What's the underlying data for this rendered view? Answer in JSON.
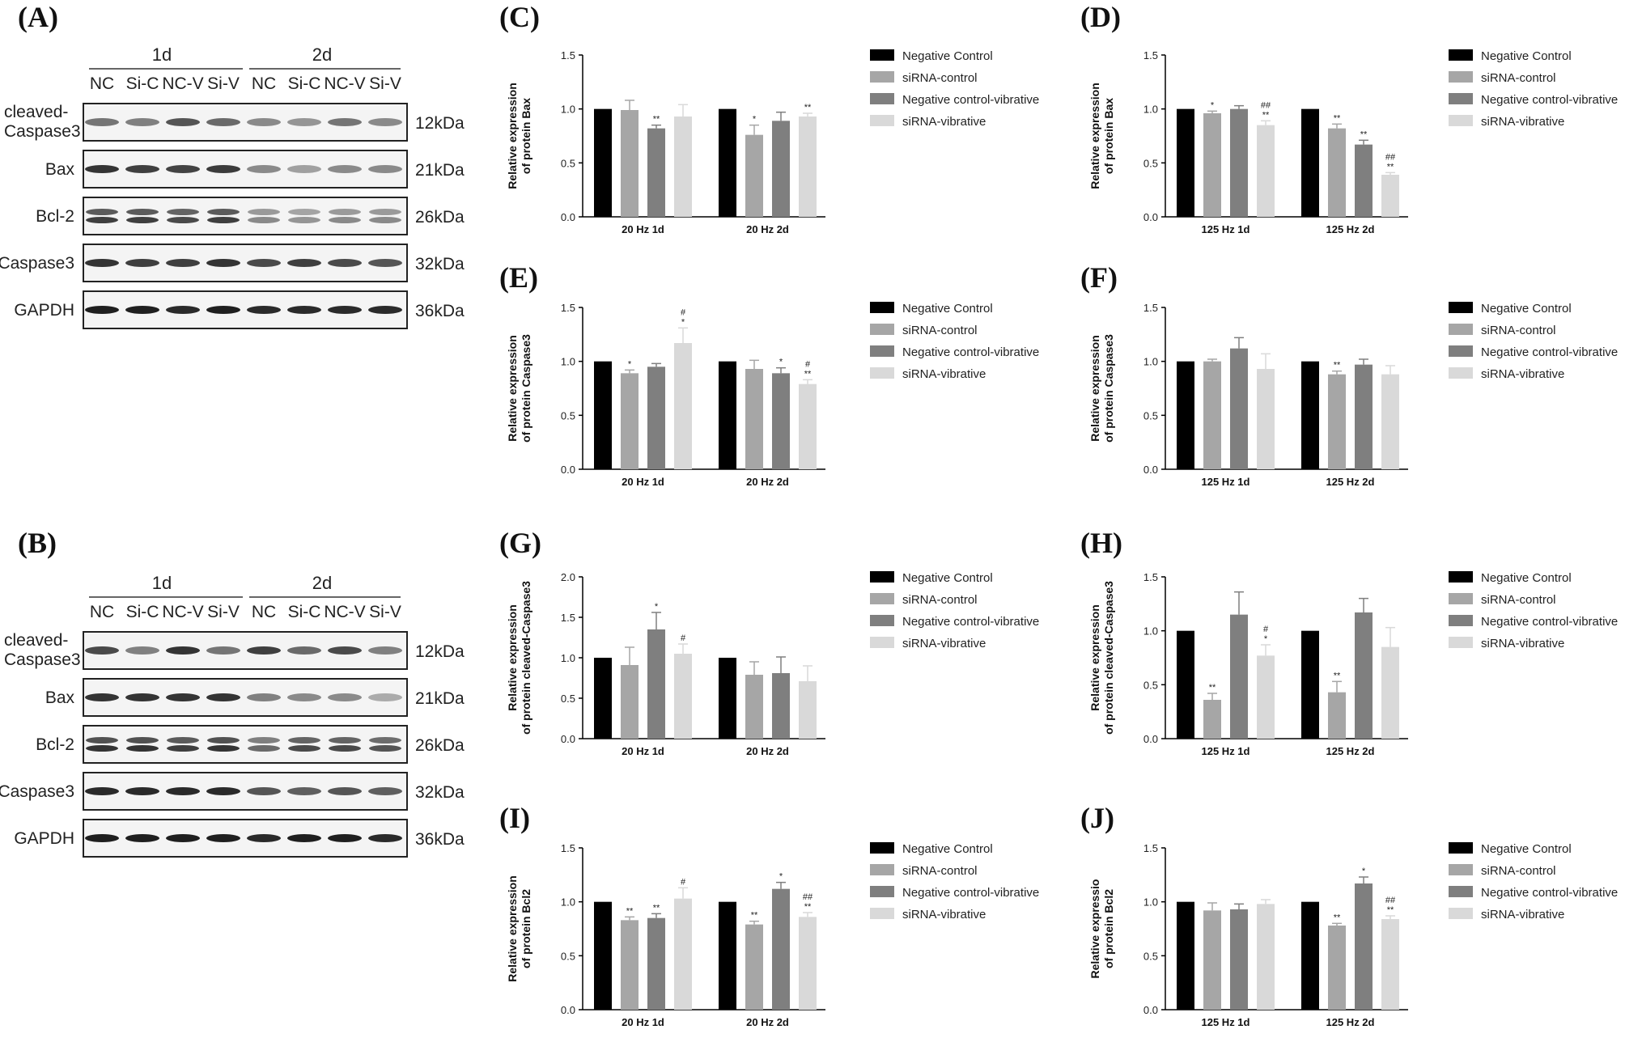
{
  "panel_letters": {
    "A": "(A)",
    "B": "(B)",
    "C": "(C)",
    "D": "(D)",
    "E": "(E)",
    "F": "(F)",
    "G": "(G)",
    "H": "(H)",
    "I": "(I)",
    "J": "(J)"
  },
  "blots": [
    {
      "day_headers": [
        "1d",
        "2d"
      ],
      "lanes": [
        "NC",
        "Si-C",
        "NC-V",
        "Si-V",
        "NC",
        "Si-C",
        "NC-V",
        "Si-V"
      ],
      "rows": [
        {
          "label": "cleaved-\nCaspase3",
          "kda": "12kDa",
          "intensity": [
            0.55,
            0.5,
            0.7,
            0.6,
            0.45,
            0.4,
            0.55,
            0.45
          ],
          "double": false
        },
        {
          "label": "Bax",
          "kda": "21kDa",
          "intensity": [
            0.85,
            0.8,
            0.78,
            0.82,
            0.45,
            0.35,
            0.45,
            0.45
          ],
          "double": false
        },
        {
          "label": "Bcl-2",
          "kda": "26kDa",
          "intensity": [
            0.8,
            0.8,
            0.75,
            0.8,
            0.45,
            0.4,
            0.45,
            0.45
          ],
          "double": true
        },
        {
          "label": "Caspase3",
          "kda": "32kDa",
          "intensity": [
            0.85,
            0.8,
            0.8,
            0.85,
            0.75,
            0.8,
            0.75,
            0.7
          ],
          "double": false
        },
        {
          "label": "GAPDH",
          "kda": "36kDa",
          "intensity": [
            0.95,
            0.95,
            0.9,
            0.95,
            0.9,
            0.9,
            0.9,
            0.9
          ],
          "double": false
        }
      ]
    },
    {
      "day_headers": [
        "1d",
        "2d"
      ],
      "lanes": [
        "NC",
        "Si-C",
        "NC-V",
        "Si-V",
        "NC",
        "Si-C",
        "NC-V",
        "Si-V"
      ],
      "rows": [
        {
          "label": "cleaved-\nCaspase3",
          "kda": "12kDa",
          "intensity": [
            0.75,
            0.5,
            0.85,
            0.55,
            0.8,
            0.6,
            0.75,
            0.5
          ],
          "double": false
        },
        {
          "label": "Bax",
          "kda": "21kDa",
          "intensity": [
            0.85,
            0.85,
            0.85,
            0.85,
            0.5,
            0.45,
            0.45,
            0.3
          ],
          "double": false
        },
        {
          "label": "Bcl-2",
          "kda": "26kDa",
          "intensity": [
            0.85,
            0.85,
            0.8,
            0.85,
            0.6,
            0.75,
            0.75,
            0.7
          ],
          "double": true
        },
        {
          "label": "Caspase3",
          "kda": "32kDa",
          "intensity": [
            0.9,
            0.9,
            0.9,
            0.9,
            0.7,
            0.65,
            0.7,
            0.65
          ],
          "double": false
        },
        {
          "label": "GAPDH",
          "kda": "36kDa",
          "intensity": [
            0.95,
            0.95,
            0.95,
            0.95,
            0.9,
            0.95,
            0.95,
            0.9
          ],
          "double": false
        }
      ]
    }
  ],
  "chart_data": [
    {
      "id": "C",
      "type": "bar",
      "ylabel": [
        "Relative expression",
        "of protein Bax"
      ],
      "ylim": [
        0,
        1.5
      ],
      "yticks": [
        "0.0",
        "0.5",
        "1.0",
        "1.5"
      ],
      "categories": [
        "20 Hz 1d",
        "20 Hz 2d"
      ],
      "series": [
        {
          "name": "Negative Control",
          "color": "#000000",
          "values": [
            1.0,
            1.0
          ],
          "errors": [
            0,
            0
          ]
        },
        {
          "name": "siRNA-control",
          "color": "#a6a6a6",
          "values": [
            0.99,
            0.76
          ],
          "errors": [
            0.09,
            0.09
          ]
        },
        {
          "name": "Negative control-vibrative",
          "color": "#7f7f7f",
          "values": [
            0.82,
            0.89
          ],
          "errors": [
            0.03,
            0.08
          ]
        },
        {
          "name": "siRNA-vibrative",
          "color": "#d9d9d9",
          "values": [
            0.93,
            0.93
          ],
          "errors": [
            0.11,
            0.03
          ]
        }
      ],
      "annotations": [
        [
          "",
          "",
          "**",
          ""
        ],
        [
          "",
          "*",
          "",
          "**"
        ]
      ]
    },
    {
      "id": "D",
      "type": "bar",
      "ylabel": [
        "Relative expression",
        "of protein Bax"
      ],
      "ylim": [
        0,
        1.5
      ],
      "yticks": [
        "0.0",
        "0.5",
        "1.0",
        "1.5"
      ],
      "categories": [
        "125 Hz 1d",
        "125 Hz 2d"
      ],
      "series": [
        {
          "name": "Negative Control",
          "color": "#000000",
          "values": [
            1.0,
            1.0
          ],
          "errors": [
            0,
            0
          ]
        },
        {
          "name": "siRNA-control",
          "color": "#a6a6a6",
          "values": [
            0.96,
            0.82
          ],
          "errors": [
            0.02,
            0.04
          ]
        },
        {
          "name": "Negative control-vibrative",
          "color": "#7f7f7f",
          "values": [
            1.0,
            0.67
          ],
          "errors": [
            0.03,
            0.04
          ]
        },
        {
          "name": "siRNA-vibrative",
          "color": "#d9d9d9",
          "values": [
            0.85,
            0.39
          ],
          "errors": [
            0.04,
            0.02
          ]
        }
      ],
      "annotations": [
        [
          "",
          "*",
          "",
          "##\n**"
        ],
        [
          "",
          "**",
          "**",
          "##\n**"
        ]
      ]
    },
    {
      "id": "E",
      "type": "bar",
      "ylabel": [
        "Relative expression",
        "of protein Caspase3"
      ],
      "ylim": [
        0,
        1.5
      ],
      "yticks": [
        "0.0",
        "0.5",
        "1.0",
        "1.5"
      ],
      "categories": [
        "20 Hz 1d",
        "20 Hz 2d"
      ],
      "series": [
        {
          "name": "Negative Control",
          "color": "#000000",
          "values": [
            1.0,
            1.0
          ],
          "errors": [
            0,
            0
          ]
        },
        {
          "name": "siRNA-control",
          "color": "#a6a6a6",
          "values": [
            0.89,
            0.93
          ],
          "errors": [
            0.03,
            0.08
          ]
        },
        {
          "name": "Negative control-vibrative",
          "color": "#7f7f7f",
          "values": [
            0.95,
            0.89
          ],
          "errors": [
            0.03,
            0.05
          ]
        },
        {
          "name": "siRNA-vibrative",
          "color": "#d9d9d9",
          "values": [
            1.17,
            0.79
          ],
          "errors": [
            0.14,
            0.04
          ]
        }
      ],
      "annotations": [
        [
          "",
          "*",
          "",
          "#\n*"
        ],
        [
          "",
          "",
          "*",
          "#\n**"
        ]
      ]
    },
    {
      "id": "F",
      "type": "bar",
      "ylabel": [
        "Relative expression",
        "of protein Caspase3"
      ],
      "ylim": [
        0,
        1.5
      ],
      "yticks": [
        "0.0",
        "0.5",
        "1.0",
        "1.5"
      ],
      "categories": [
        "125 Hz 1d",
        "125 Hz 2d"
      ],
      "series": [
        {
          "name": "Negative Control",
          "color": "#000000",
          "values": [
            1.0,
            1.0
          ],
          "errors": [
            0,
            0
          ]
        },
        {
          "name": "siRNA-control",
          "color": "#a6a6a6",
          "values": [
            1.0,
            0.88
          ],
          "errors": [
            0.02,
            0.03
          ]
        },
        {
          "name": "Negative control-vibrative",
          "color": "#7f7f7f",
          "values": [
            1.12,
            0.97
          ],
          "errors": [
            0.1,
            0.05
          ]
        },
        {
          "name": "siRNA-vibrative",
          "color": "#d9d9d9",
          "values": [
            0.93,
            0.88
          ],
          "errors": [
            0.14,
            0.08
          ]
        }
      ],
      "annotations": [
        [
          "",
          "",
          "",
          ""
        ],
        [
          "",
          "**",
          "",
          ""
        ]
      ]
    },
    {
      "id": "G",
      "type": "bar",
      "ylabel": [
        "Relative expression",
        "of protein cleaved-Caspase3"
      ],
      "ylim": [
        0,
        2.0
      ],
      "yticks": [
        "0.0",
        "0.5",
        "1.0",
        "1.5",
        "2.0"
      ],
      "categories": [
        "20 Hz 1d",
        "20 Hz 2d"
      ],
      "series": [
        {
          "name": "Negative Control",
          "color": "#000000",
          "values": [
            1.0,
            1.0
          ],
          "errors": [
            0,
            0
          ]
        },
        {
          "name": "siRNA-control",
          "color": "#a6a6a6",
          "values": [
            0.91,
            0.79
          ],
          "errors": [
            0.22,
            0.16
          ]
        },
        {
          "name": "Negative control-vibrative",
          "color": "#7f7f7f",
          "values": [
            1.35,
            0.81
          ],
          "errors": [
            0.21,
            0.2
          ]
        },
        {
          "name": "siRNA-vibrative",
          "color": "#d9d9d9",
          "values": [
            1.05,
            0.71
          ],
          "errors": [
            0.12,
            0.19
          ]
        }
      ],
      "annotations": [
        [
          "",
          "",
          "*",
          "#"
        ],
        [
          "",
          "",
          "",
          ""
        ]
      ]
    },
    {
      "id": "H",
      "type": "bar",
      "ylabel": [
        "Relative expression",
        "of protein cleaved-Caspase3"
      ],
      "ylim": [
        0,
        1.5
      ],
      "yticks": [
        "0.0",
        "0.5",
        "1.0",
        "1.5"
      ],
      "categories": [
        "125 Hz 1d",
        "125 Hz 2d"
      ],
      "series": [
        {
          "name": "Negative Control",
          "color": "#000000",
          "values": [
            1.0,
            1.0
          ],
          "errors": [
            0,
            0
          ]
        },
        {
          "name": "siRNA-control",
          "color": "#a6a6a6",
          "values": [
            0.36,
            0.43
          ],
          "errors": [
            0.06,
            0.1
          ]
        },
        {
          "name": "Negative control-vibrative",
          "color": "#7f7f7f",
          "values": [
            1.15,
            1.17
          ],
          "errors": [
            0.21,
            0.13
          ]
        },
        {
          "name": "siRNA-vibrative",
          "color": "#d9d9d9",
          "values": [
            0.77,
            0.85
          ],
          "errors": [
            0.1,
            0.18
          ]
        }
      ],
      "annotations": [
        [
          "",
          "**",
          "",
          "#\n*"
        ],
        [
          "",
          "**",
          "",
          ""
        ]
      ]
    },
    {
      "id": "I",
      "type": "bar",
      "ylabel": [
        "Relative expression",
        "of protein Bcl2"
      ],
      "ylim": [
        0,
        1.5
      ],
      "yticks": [
        "0.0",
        "0.5",
        "1.0",
        "1.5"
      ],
      "categories": [
        "20 Hz 1d",
        "20 Hz 2d"
      ],
      "series": [
        {
          "name": "Negative Control",
          "color": "#000000",
          "values": [
            1.0,
            1.0
          ],
          "errors": [
            0,
            0
          ]
        },
        {
          "name": "siRNA-control",
          "color": "#a6a6a6",
          "values": [
            0.83,
            0.79
          ],
          "errors": [
            0.03,
            0.03
          ]
        },
        {
          "name": "Negative control-vibrative",
          "color": "#7f7f7f",
          "values": [
            0.85,
            1.12
          ],
          "errors": [
            0.04,
            0.06
          ]
        },
        {
          "name": "siRNA-vibrative",
          "color": "#d9d9d9",
          "values": [
            1.03,
            0.86
          ],
          "errors": [
            0.1,
            0.04
          ]
        }
      ],
      "annotations": [
        [
          "",
          "**",
          "**",
          "#"
        ],
        [
          "",
          "**",
          "*",
          "##\n**"
        ]
      ]
    },
    {
      "id": "J",
      "type": "bar",
      "ylabel": [
        "Relative expressio",
        "of protein Bcl2"
      ],
      "ylim": [
        0,
        1.5
      ],
      "yticks": [
        "0.0",
        "0.5",
        "1.0",
        "1.5"
      ],
      "categories": [
        "125 Hz 1d",
        "125 Hz 2d"
      ],
      "series": [
        {
          "name": "Negative Control",
          "color": "#000000",
          "values": [
            1.0,
            1.0
          ],
          "errors": [
            0,
            0
          ]
        },
        {
          "name": "siRNA-control",
          "color": "#a6a6a6",
          "values": [
            0.92,
            0.78
          ],
          "errors": [
            0.07,
            0.02
          ]
        },
        {
          "name": "Negative control-vibrative",
          "color": "#7f7f7f",
          "values": [
            0.93,
            1.17
          ],
          "errors": [
            0.05,
            0.06
          ]
        },
        {
          "name": "siRNA-vibrative",
          "color": "#d9d9d9",
          "values": [
            0.98,
            0.84
          ],
          "errors": [
            0.04,
            0.03
          ]
        }
      ],
      "annotations": [
        [
          "",
          "",
          "",
          ""
        ],
        [
          "",
          "**",
          "*",
          "##\n**"
        ]
      ]
    }
  ]
}
